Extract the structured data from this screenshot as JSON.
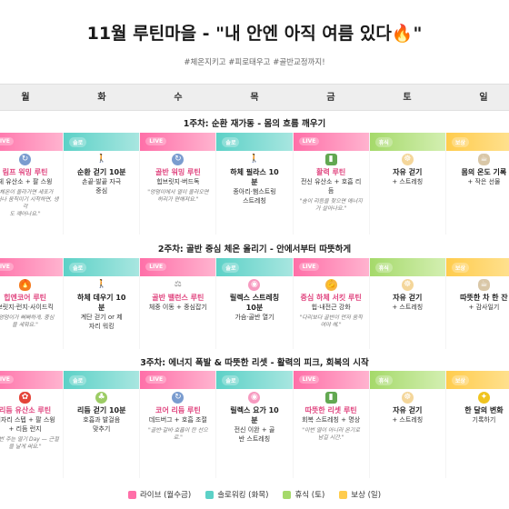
{
  "header": {
    "title": "11월 루틴마을 - \"내 안엔 아직 여름 있다🔥\"",
    "tags": "#체온지키고 #피로태우고 #골반교정까지!"
  },
  "days": [
    "월",
    "화",
    "수",
    "목",
    "금",
    "토",
    "일"
  ],
  "colors": {
    "live": "#ff6fa8",
    "solo": "#5cd1c7",
    "rest": "#a5d96a",
    "reward": "#ffcc4d"
  },
  "weeks": [
    {
      "title": "1주차: 순환 재가동 - 몸의 흐름 깨우기",
      "cards": [
        {
          "type": "live",
          "badge": "LIVE",
          "icon": "refresh-icon",
          "title": "림프 워밍 루틴",
          "title_style": "pink",
          "sub": "체 유산소 + 팔 스윙",
          "quote": "\"체온이 올라가면 세포가\n깨어나 움직이기 시작하면, 생각\n도 깨어나요.\""
        },
        {
          "type": "solo",
          "badge": "솔로",
          "icon": "walk-icon",
          "title": "순환 걷기 10분",
          "title_style": "dark",
          "sub": "손끝·발끝 자극\n중심",
          "quote": ""
        },
        {
          "type": "live",
          "badge": "LIVE",
          "icon": "refresh-icon",
          "title": "골반 워밍 루틴",
          "title_style": "pink",
          "sub": "힙브릿지·버드독",
          "quote": "\"엉덩이에서 열이 올라오면\n허리가 편해져요.\""
        },
        {
          "type": "solo",
          "badge": "솔로",
          "icon": "walk-icon",
          "title": "하체 필라스 10\n분",
          "title_style": "dark",
          "sub": "종아리·햄스트링\n스트레칭",
          "quote": ""
        },
        {
          "type": "live",
          "badge": "LIVE",
          "icon": "battery-icon",
          "title": "활력 루틴",
          "title_style": "pink",
          "sub": "전신 유산소 + 호흡 리\n듬",
          "quote": "\"숨이 리듬을 찾으면 에너지\n가 살아나요.\""
        },
        {
          "type": "rest",
          "badge": "휴식",
          "icon": "lotus-icon",
          "title": "자유 걷기",
          "title_style": "dark",
          "sub": "+ 스트레칭",
          "quote": ""
        },
        {
          "type": "reward",
          "badge": "보상",
          "icon": "tea-icon",
          "title": "몸의 온도 기록",
          "title_style": "dark",
          "sub": "+ 작은 선물",
          "quote": ""
        }
      ]
    },
    {
      "title": "2주차: 골반 중심 체온 올리기 - 안에서부터 따뜻하게",
      "cards": [
        {
          "type": "live",
          "badge": "LIVE",
          "icon": "fire-icon",
          "title": "힙엔코어 루틴",
          "title_style": "pink",
          "sub": "브릿지·런지·사이드킥",
          "quote": "\"엉덩이가 뻐뻐하게, 중심\n을 세워요.\""
        },
        {
          "type": "solo",
          "badge": "솔로",
          "icon": "walk-icon",
          "title": "하체 데우기 10\n분",
          "title_style": "dark",
          "sub": "계단 걷기 or 제\n자리 워킹",
          "quote": ""
        },
        {
          "type": "live",
          "badge": "LIVE",
          "icon": "scale-icon",
          "title": "골반 밸런스 루틴",
          "title_style": "pink",
          "sub": "체중 이동 + 중심잡기",
          "quote": ""
        },
        {
          "type": "solo",
          "badge": "솔로",
          "icon": "brain-icon",
          "title": "릴렉스 스트레칭\n10분",
          "title_style": "dark",
          "sub": "가슴·골반 열기",
          "quote": ""
        },
        {
          "type": "live",
          "badge": "LIVE",
          "icon": "muscle-icon",
          "title": "중심 하체 서킷 루틴",
          "title_style": "pink",
          "sub": "힙·내전근 강화",
          "quote": "\"다리보다 골반이 먼저 움직\n여야 해.\""
        },
        {
          "type": "rest",
          "badge": "휴식",
          "icon": "lotus-icon",
          "title": "자유 걷기",
          "title_style": "dark",
          "sub": "+ 스트레칭",
          "quote": ""
        },
        {
          "type": "reward",
          "badge": "보상",
          "icon": "tea-icon",
          "title": "따뜻한 차 한 잔",
          "title_style": "dark",
          "sub": "+ 감사일기",
          "quote": ""
        }
      ]
    },
    {
      "title": "3주차: 에너지 폭발 & 따뜻한 리셋 - 활력의 피크, 회복의 시작",
      "cards": [
        {
          "type": "live",
          "badge": "LIVE",
          "icon": "bow-icon",
          "title": "리듬 유산소 루틴",
          "title_style": "pink",
          "sub": "제자리 스텝 + 팔 스윙\n+ 리듬 런지",
          "quote": "\"이번 주는 열기 Day — 근절\n을 날게 써요.\""
        },
        {
          "type": "solo",
          "badge": "솔로",
          "icon": "clover-icon",
          "title": "리듬 걷기 10분",
          "title_style": "dark",
          "sub": "호흡과 발걸음\n맞추기",
          "quote": ""
        },
        {
          "type": "live",
          "badge": "LIVE",
          "icon": "refresh-icon",
          "title": "코어 리듬 루틴",
          "title_style": "pink",
          "sub": "데드버그 + 호흡 조절",
          "quote": "\"골반·갈비·호흡이 한 선으\n로.\""
        },
        {
          "type": "solo",
          "badge": "솔로",
          "icon": "brain-icon",
          "title": "릴렉스 요가 10\n분",
          "title_style": "dark",
          "sub": "전신 이완 + 골\n반 스트레칭",
          "quote": ""
        },
        {
          "type": "live",
          "badge": "LIVE",
          "icon": "battery-icon",
          "title": "따뜻한 리셋 루틴",
          "title_style": "pink",
          "sub": "회복 스트레칭 + 명상",
          "quote": "\"이번 열이 아니라 온기로\n남길 시간.\""
        },
        {
          "type": "rest",
          "badge": "휴식",
          "icon": "lotus-icon",
          "title": "자유 걷기",
          "title_style": "dark",
          "sub": "+ 스트레칭",
          "quote": ""
        },
        {
          "type": "reward",
          "badge": "보상",
          "icon": "sparkle-icon",
          "title": "한 달의 변화",
          "title_style": "dark",
          "sub": "기록하기",
          "quote": ""
        }
      ]
    }
  ],
  "legend": [
    {
      "type": "live",
      "label": "라이브 (월수금)"
    },
    {
      "type": "solo",
      "label": "솔로워킹 (화목)"
    },
    {
      "type": "rest",
      "label": "휴식 (토)"
    },
    {
      "type": "reward",
      "label": "보상 (일)"
    }
  ]
}
